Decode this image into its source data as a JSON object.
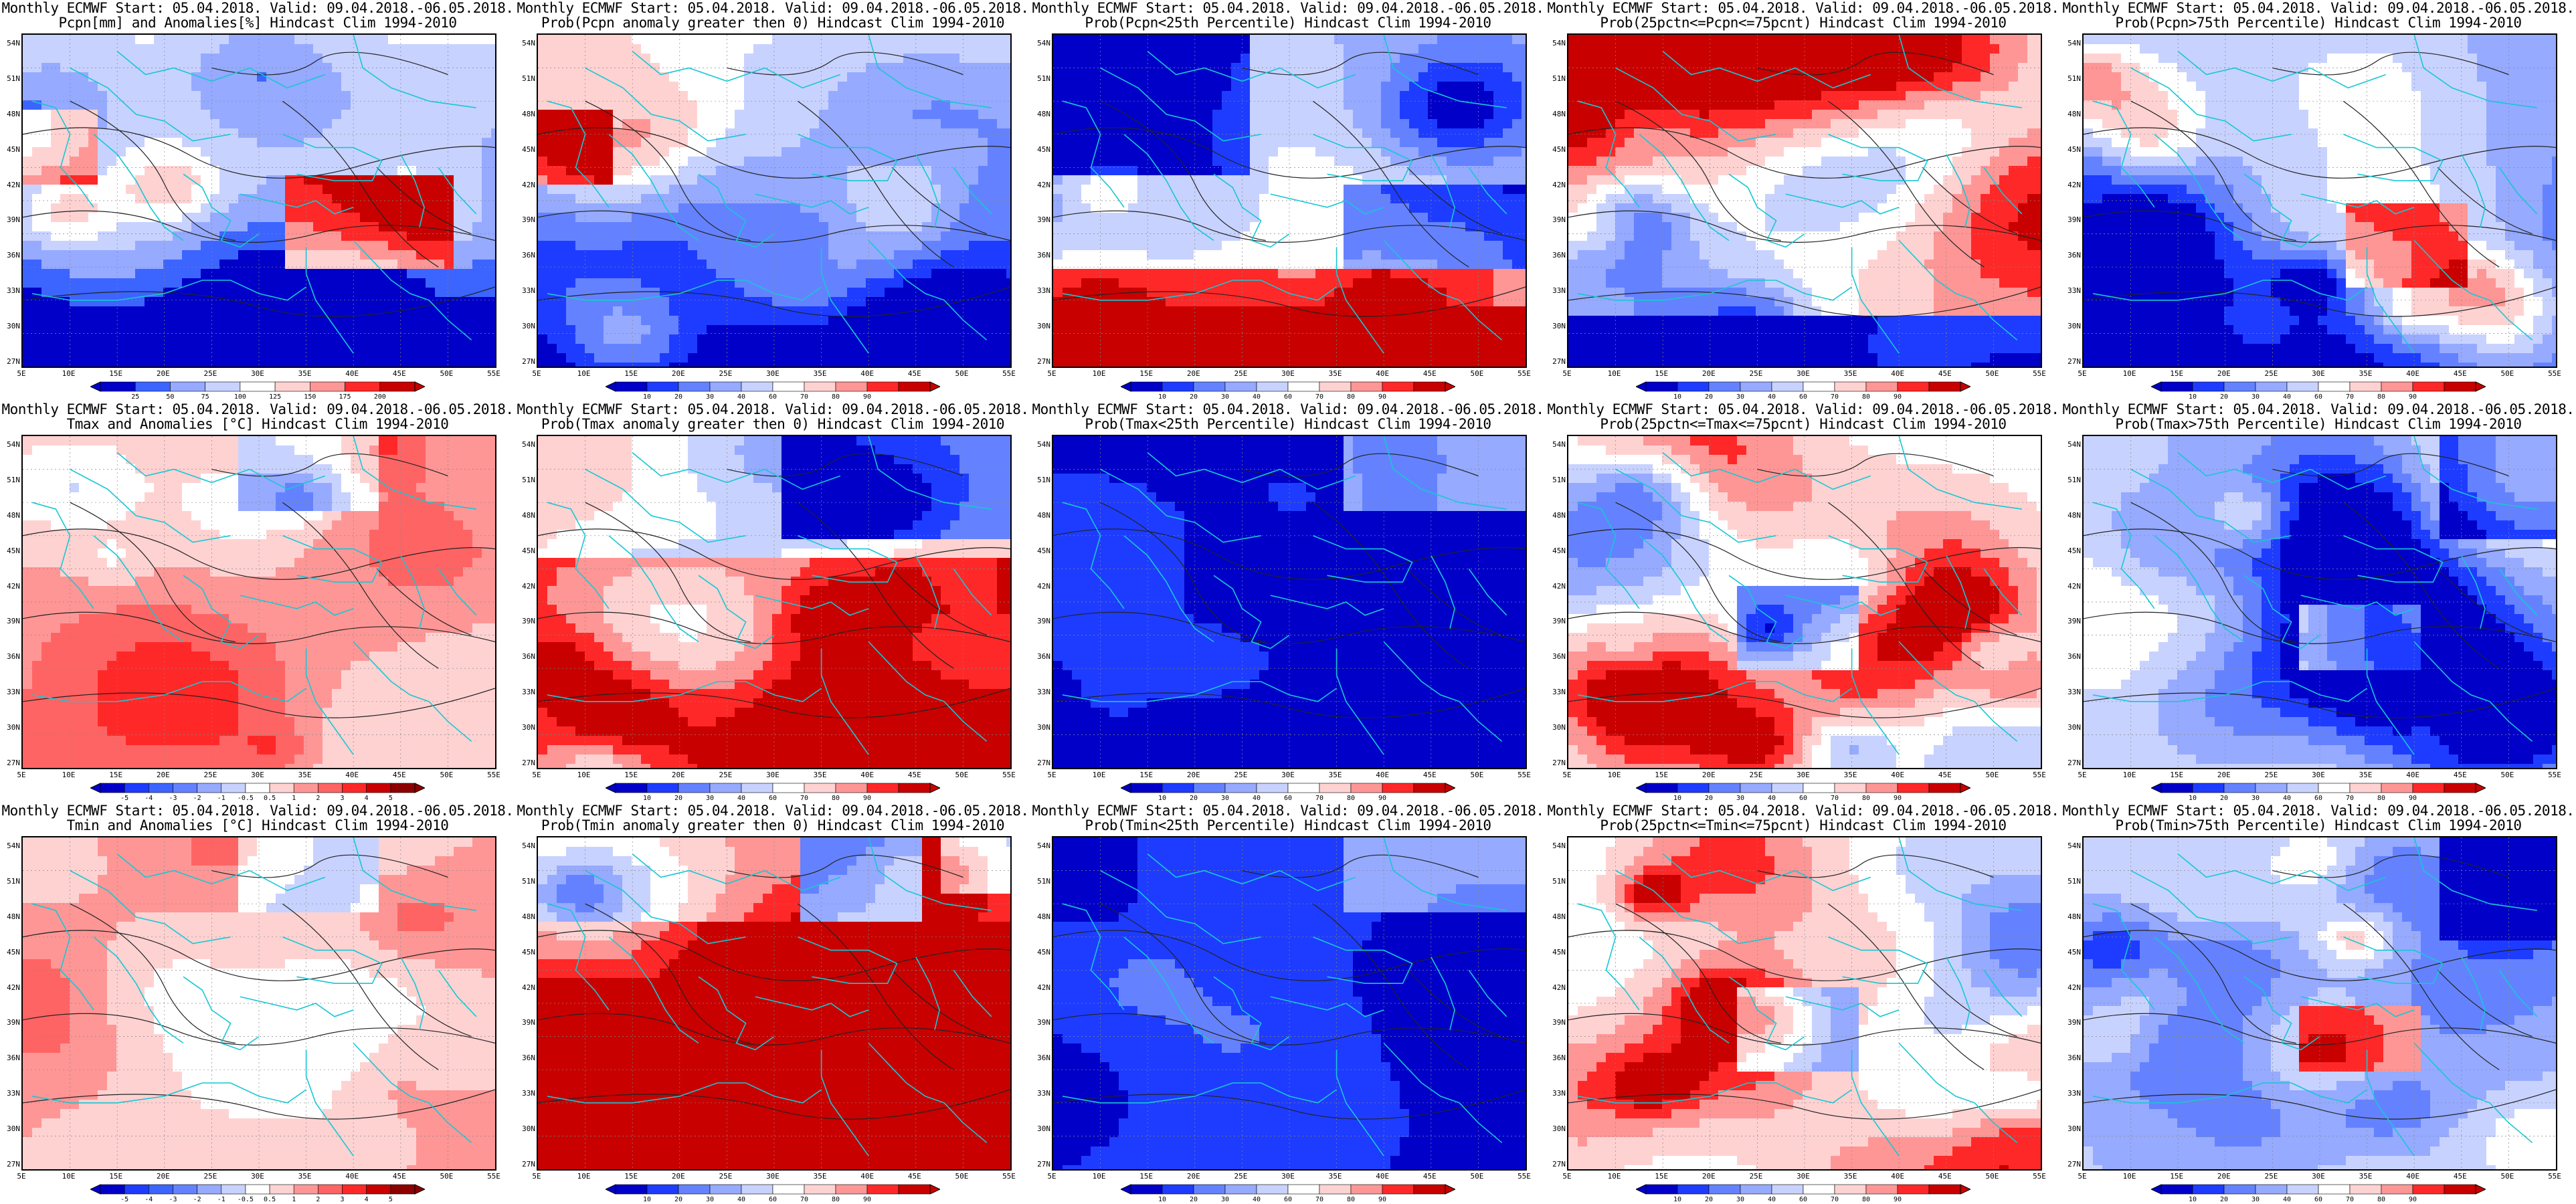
{
  "header_line": "Monthly ECMWF Start: 05.04.2018. Valid: 09.04.2018.-06.05.2018.",
  "clim": "Hindcast Clim 1994-2010",
  "lat_labels": [
    "54N",
    "51N",
    "48N",
    "45N",
    "42N",
    "39N",
    "36N",
    "33N",
    "30N",
    "27N"
  ],
  "lon_labels": [
    "5E",
    "10E",
    "15E",
    "20E",
    "25E",
    "30E",
    "35E",
    "40E",
    "45E",
    "50E",
    "55E"
  ],
  "colorbars": {
    "anom": {
      "labels": [
        "-5",
        "-4",
        "-3",
        "-2",
        "-1",
        "-0.5",
        "0.5",
        "1",
        "2",
        "3",
        "4",
        "5"
      ],
      "colors": [
        "#0000c8",
        "#1e3cff",
        "#3c64ff",
        "#6482ff",
        "#96aaff",
        "#c8d2ff",
        "#ffffff",
        "#ffd2d2",
        "#ff9696",
        "#ff6464",
        "#ff2828",
        "#c80000",
        "#8c0000"
      ]
    },
    "pcpn_anom": {
      "labels": [
        "25",
        "50",
        "75",
        "100",
        "125",
        "150",
        "175",
        "200"
      ],
      "colors": [
        "#0000c8",
        "#3c64ff",
        "#96aaff",
        "#c8d2ff",
        "#ffffff",
        "#ffd2d2",
        "#ff9696",
        "#ff2828",
        "#c80000"
      ]
    },
    "prob": {
      "labels": [
        "10",
        "20",
        "30",
        "40",
        "60",
        "70",
        "80",
        "90"
      ],
      "colors": [
        "#0000c8",
        "#1e3cff",
        "#6482ff",
        "#96aaff",
        "#c8d2ff",
        "#ffffff",
        "#ffd2d2",
        "#ff9696",
        "#ff2828",
        "#c80000"
      ]
    }
  },
  "panels": [
    {
      "row": 0,
      "col": 0,
      "subtitle": "Pcpn[mm] and Anomalies[%] Hindcast Clim 1994-2010",
      "cb": "pcpn_anom",
      "scheme": "pcpn_anom"
    },
    {
      "row": 0,
      "col": 1,
      "subtitle": "Prob(Pcpn anomaly greater then 0) Hindcast Clim 1994-2010",
      "cb": "prob",
      "scheme": "pcpn_gt0"
    },
    {
      "row": 0,
      "col": 2,
      "subtitle": "Prob(Pcpn<25th Percentile) Hindcast Clim 1994-2010",
      "cb": "prob",
      "scheme": "pcpn_lt25"
    },
    {
      "row": 0,
      "col": 3,
      "subtitle": "Prob(25pctn<=Pcpn<=75pcnt) Hindcast Clim 1994-2010",
      "cb": "prob",
      "scheme": "pcpn_mid"
    },
    {
      "row": 0,
      "col": 4,
      "subtitle": "Prob(Pcpn>75th Percentile) Hindcast Clim 1994-2010",
      "cb": "prob",
      "scheme": "pcpn_gt75"
    },
    {
      "row": 1,
      "col": 0,
      "subtitle": "Tmax and Anomalies [°C] Hindcast Clim 1994-2010",
      "cb": "anom",
      "scheme": "t_anom"
    },
    {
      "row": 1,
      "col": 1,
      "subtitle": "Prob(Tmax anomaly greater then 0) Hindcast Clim 1994-2010",
      "cb": "prob",
      "scheme": "t_gt0"
    },
    {
      "row": 1,
      "col": 2,
      "subtitle": "Prob(Tmax<25th Percentile) Hindcast Clim 1994-2010",
      "cb": "prob",
      "scheme": "t_lt25"
    },
    {
      "row": 1,
      "col": 3,
      "subtitle": "Prob(25pctn<=Tmax<=75pcnt) Hindcast Clim 1994-2010",
      "cb": "prob",
      "scheme": "t_mid"
    },
    {
      "row": 1,
      "col": 4,
      "subtitle": "Prob(Tmax>75th Percentile) Hindcast Clim 1994-2010",
      "cb": "prob",
      "scheme": "t_gt75"
    },
    {
      "row": 2,
      "col": 0,
      "subtitle": "Tmin and Anomalies [°C] Hindcast Clim 1994-2010",
      "cb": "anom",
      "scheme": "t_anom"
    },
    {
      "row": 2,
      "col": 1,
      "subtitle": "Prob(Tmin anomaly greater then 0) Hindcast Clim 1994-2010",
      "cb": "prob",
      "scheme": "tmin_gt0"
    },
    {
      "row": 2,
      "col": 2,
      "subtitle": "Prob(Tmin<25th Percentile) Hindcast Clim 1994-2010",
      "cb": "prob",
      "scheme": "t_lt25"
    },
    {
      "row": 2,
      "col": 3,
      "subtitle": "Prob(25pctn<=Tmin<=75pcnt) Hindcast Clim 1994-2010",
      "cb": "prob",
      "scheme": "t_mid"
    },
    {
      "row": 2,
      "col": 4,
      "subtitle": "Prob(Tmin>75th Percentile) Hindcast Clim 1994-2010",
      "cb": "prob",
      "scheme": "t_gt75"
    }
  ]
}
